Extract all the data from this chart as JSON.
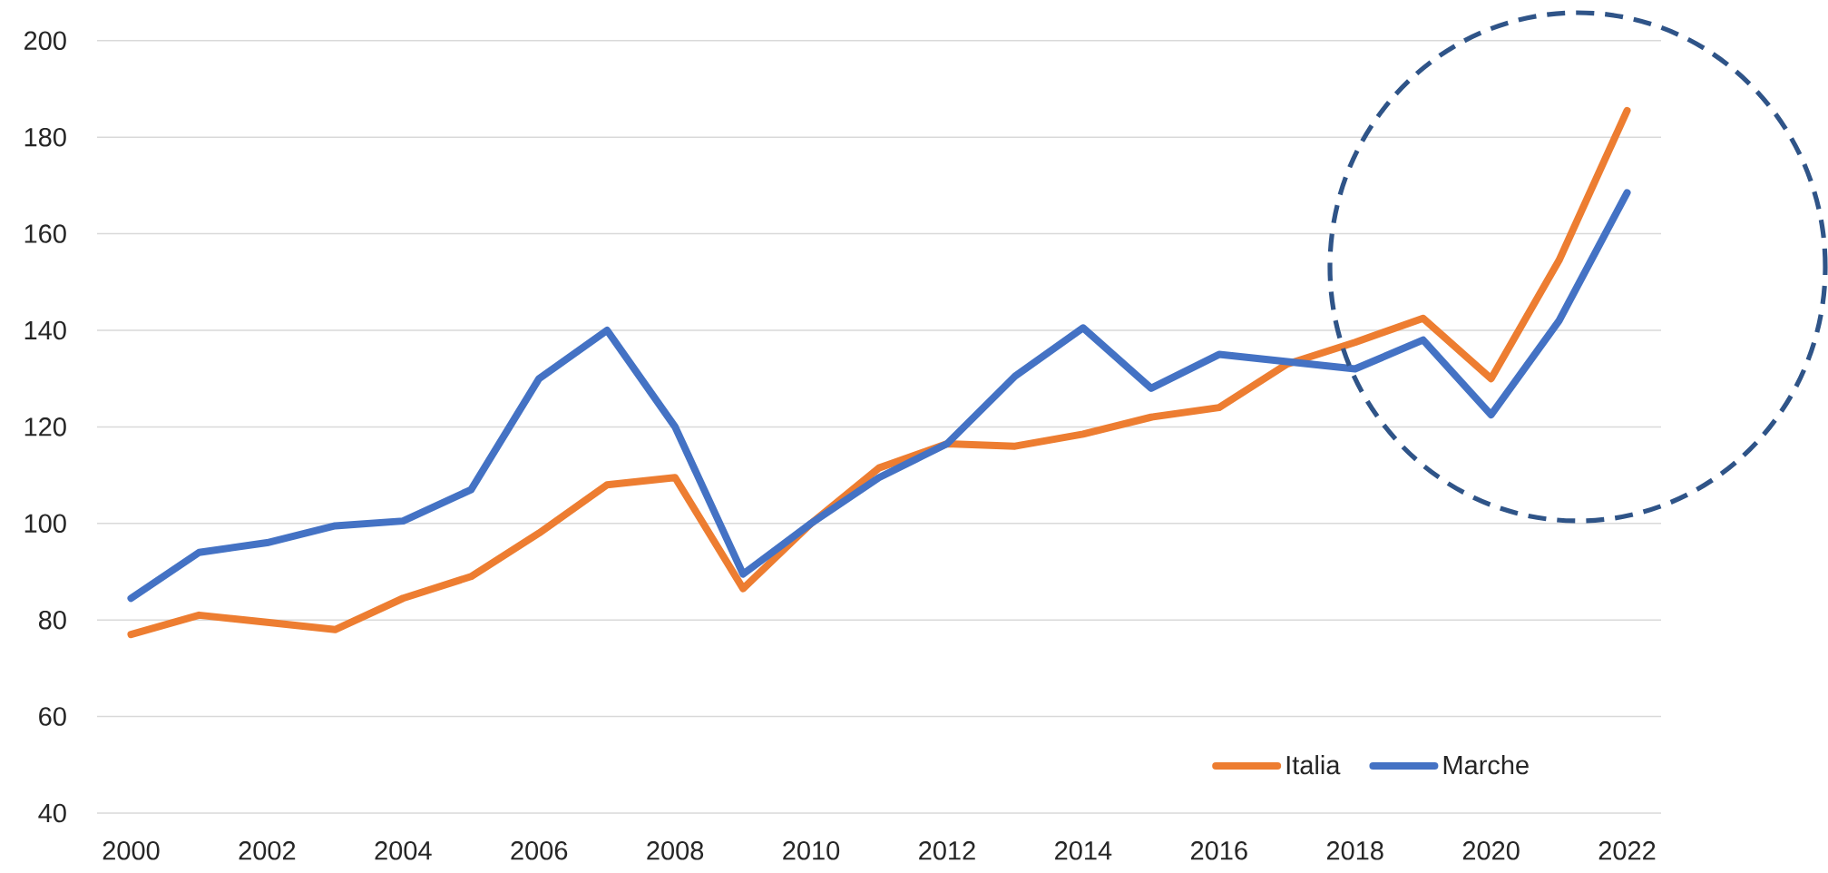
{
  "chart_data": {
    "type": "line",
    "categories": [
      "2000",
      null,
      "2002",
      null,
      "2004",
      null,
      "2006",
      null,
      "2008",
      null,
      "2010",
      null,
      "2012",
      null,
      "2014",
      null,
      "2016",
      null,
      "2018",
      null,
      "2020",
      null,
      "2022"
    ],
    "series": [
      {
        "name": "Italia",
        "color": "#ED7D31",
        "values": [
          77,
          81,
          79.5,
          78,
          84.5,
          89,
          98,
          108,
          109.5,
          86.5,
          100,
          111.5,
          116.5,
          116,
          118.5,
          122,
          124,
          133,
          137.5,
          142.5,
          130,
          154.5,
          185.5
        ]
      },
      {
        "name": "Marche",
        "color": "#4472C4",
        "values": [
          84.5,
          94,
          96,
          99.5,
          100.5,
          107,
          130,
          140,
          120,
          89.5,
          100,
          109.5,
          116.5,
          130.5,
          140.5,
          128,
          135,
          133.5,
          132,
          138,
          122.5,
          142,
          168.5
        ]
      }
    ],
    "ylim": [
      40,
      200
    ],
    "yticks": [
      40,
      60,
      80,
      100,
      120,
      140,
      160,
      180,
      200
    ],
    "grid": "y",
    "legend": "bottom right"
  }
}
